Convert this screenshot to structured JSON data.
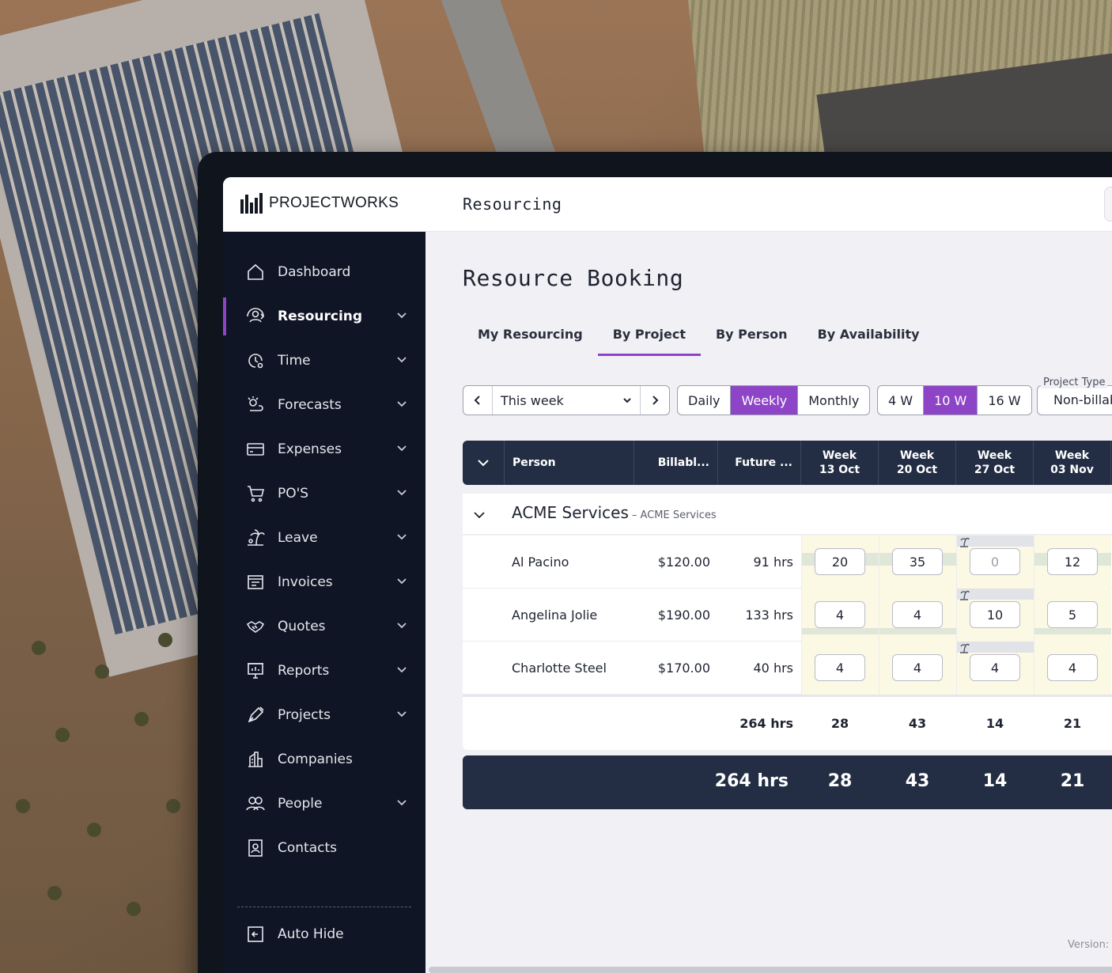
{
  "brand": {
    "name": "PROJECTWORKS"
  },
  "header": {
    "title": "Resourcing"
  },
  "sidebar": {
    "items": [
      {
        "label": "Dashboard",
        "icon": "home-icon",
        "expandable": false,
        "active": false
      },
      {
        "label": "Resourcing",
        "icon": "resourcing-icon",
        "expandable": true,
        "active": true
      },
      {
        "label": "Time",
        "icon": "clock-icon",
        "expandable": true,
        "active": false
      },
      {
        "label": "Forecasts",
        "icon": "forecast-icon",
        "expandable": true,
        "active": false
      },
      {
        "label": "Expenses",
        "icon": "card-icon",
        "expandable": true,
        "active": false
      },
      {
        "label": "PO'S",
        "icon": "cart-icon",
        "expandable": true,
        "active": false
      },
      {
        "label": "Leave",
        "icon": "palm-tree-icon",
        "expandable": true,
        "active": false
      },
      {
        "label": "Invoices",
        "icon": "invoice-icon",
        "expandable": true,
        "active": false
      },
      {
        "label": "Quotes",
        "icon": "handshake-icon",
        "expandable": true,
        "active": false
      },
      {
        "label": "Reports",
        "icon": "report-icon",
        "expandable": true,
        "active": false
      },
      {
        "label": "Projects",
        "icon": "pen-icon",
        "expandable": true,
        "active": false
      },
      {
        "label": "Companies",
        "icon": "building-icon",
        "expandable": false,
        "active": false
      },
      {
        "label": "People",
        "icon": "people-icon",
        "expandable": true,
        "active": false
      },
      {
        "label": "Contacts",
        "icon": "contact-card-icon",
        "expandable": false,
        "active": false
      }
    ],
    "auto_hide": "Auto Hide"
  },
  "page": {
    "title": "Resource Booking",
    "tabs": [
      {
        "label": "My Resourcing",
        "active": false
      },
      {
        "label": "By Project",
        "active": true
      },
      {
        "label": "By Person",
        "active": false
      },
      {
        "label": "By Availability",
        "active": false
      }
    ],
    "week_select": "This week",
    "view_modes": [
      {
        "label": "Daily",
        "active": false
      },
      {
        "label": "Weekly",
        "active": true
      },
      {
        "label": "Monthly",
        "active": false
      }
    ],
    "ranges": [
      {
        "label": "4 W",
        "active": false
      },
      {
        "label": "10 W",
        "active": true
      },
      {
        "label": "16 W",
        "active": false
      }
    ],
    "project_type": {
      "label": "Project Type",
      "value": "Non-billab"
    },
    "version_label": "Version:",
    "accent": "#8e44c7"
  },
  "table": {
    "columns": {
      "person": "Person",
      "billable": "Billabl...",
      "future": "Future ...",
      "weeks": [
        {
          "line1": "Week",
          "line2": "13 Oct"
        },
        {
          "line1": "Week",
          "line2": "20 Oct"
        },
        {
          "line1": "Week",
          "line2": "27 Oct"
        },
        {
          "line1": "Week",
          "line2": "03 Nov"
        }
      ]
    },
    "group": {
      "name": "ACME Services",
      "sub": "– ACME Services"
    },
    "rows": [
      {
        "person": "Al Pacino",
        "rate": "$120.00",
        "future": "91 hrs",
        "weeks": [
          "20",
          "35",
          "0",
          "12"
        ]
      },
      {
        "person": "Angelina Jolie",
        "rate": "$190.00",
        "future": "133 hrs",
        "weeks": [
          "4",
          "4",
          "10",
          "5"
        ]
      },
      {
        "person": "Charlotte Steel",
        "rate": "$170.00",
        "future": "40 hrs",
        "weeks": [
          "4",
          "4",
          "4",
          "4"
        ]
      }
    ],
    "subtotal": {
      "future": "264 hrs",
      "weeks": [
        "28",
        "43",
        "14",
        "21"
      ]
    },
    "total": {
      "future": "264 hrs",
      "weeks": [
        "28",
        "43",
        "14",
        "21"
      ]
    }
  }
}
